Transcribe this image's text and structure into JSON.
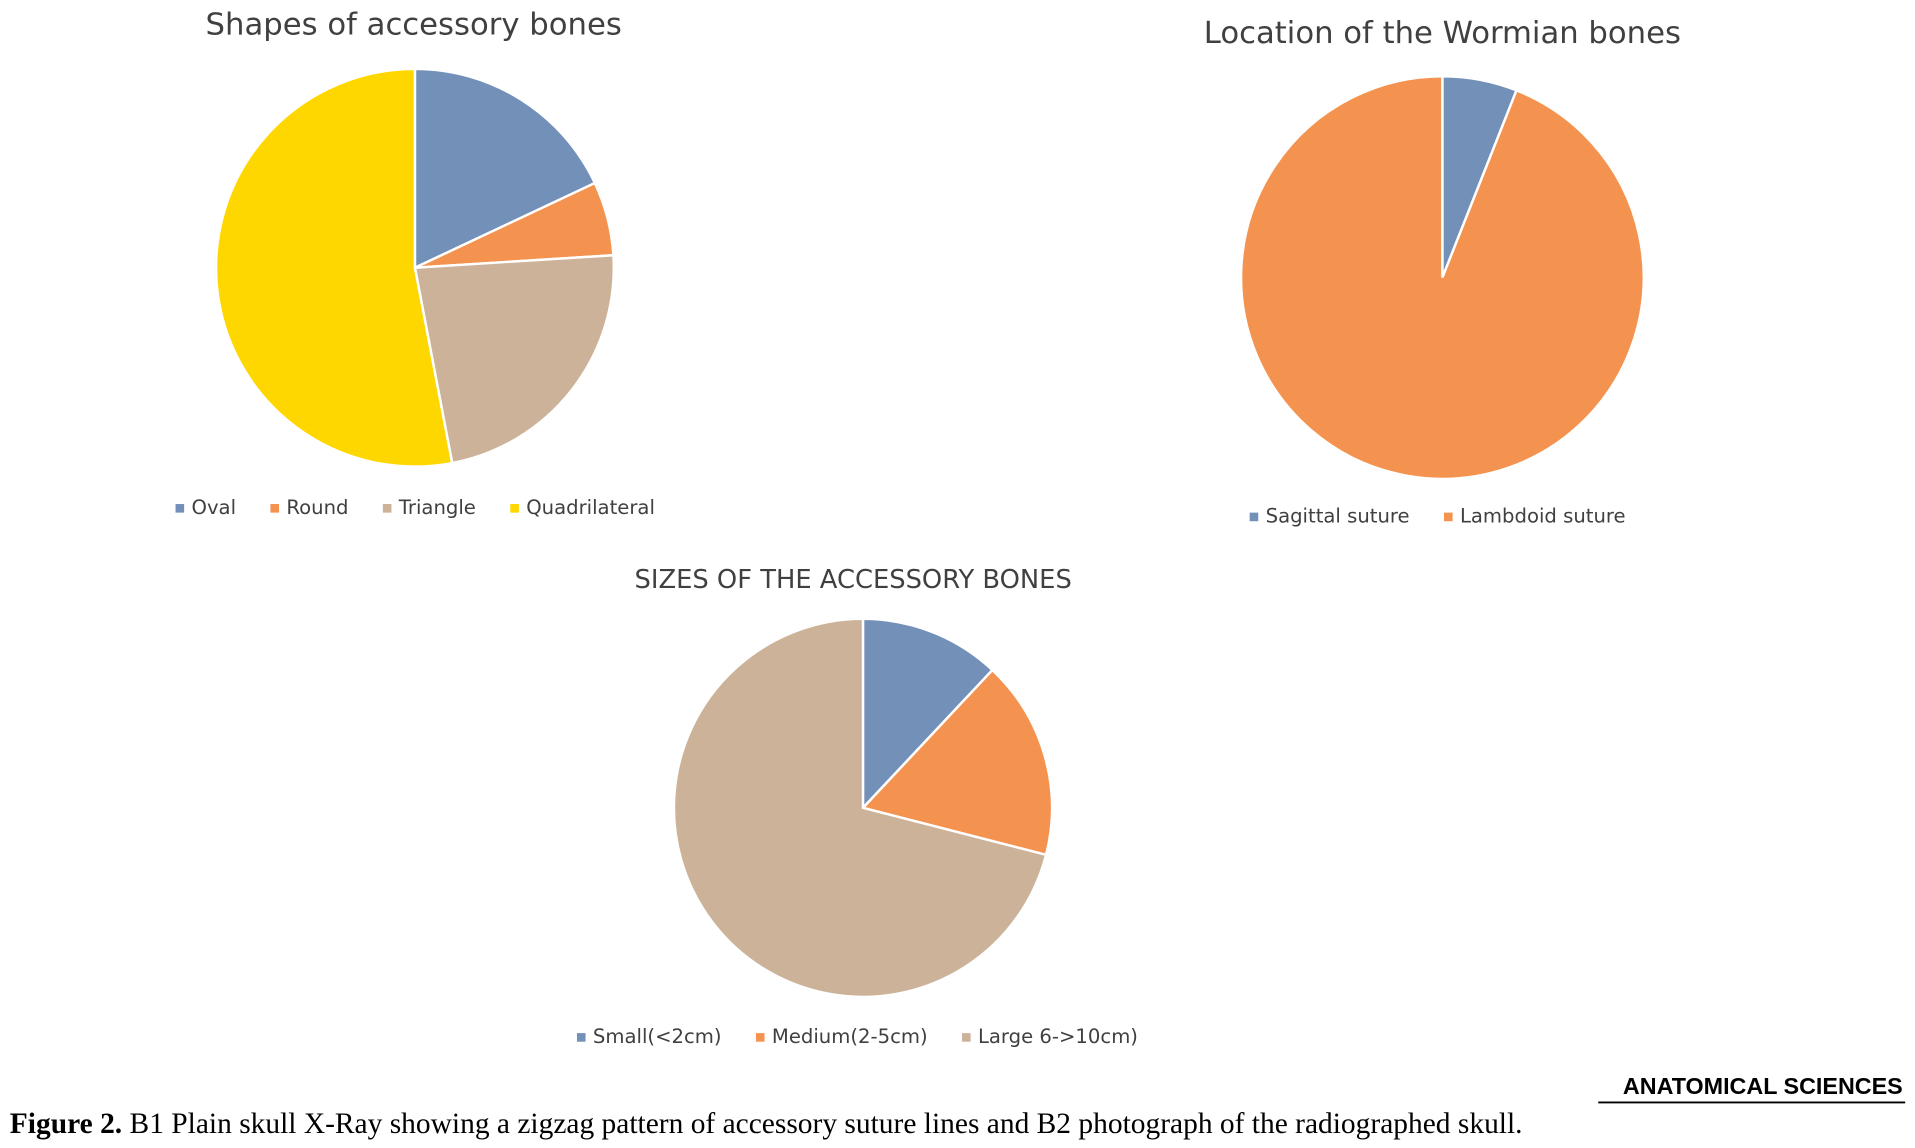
{
  "chart_data": [
    {
      "type": "pie",
      "title": "Shapes of accessory  bones",
      "categories": [
        "Oval",
        "Round",
        "Triangle",
        "Quadrilateral"
      ],
      "values": [
        18,
        6,
        23,
        53
      ],
      "colors": [
        "#7390b9",
        "#f4934f",
        "#cdb29a",
        "#ffd700"
      ],
      "legend": "bottom"
    },
    {
      "type": "pie",
      "title": "Location of the Wormian bones",
      "categories": [
        "Sagittal suture",
        "Lambdoid suture"
      ],
      "values": [
        6,
        94
      ],
      "colors": [
        "#7390b9",
        "#f4934f"
      ],
      "legend": "bottom"
    },
    {
      "type": "pie",
      "title": "SIZES OF THE ACCESSORY BONES",
      "categories": [
        "Small(<2cm)",
        "Medium(2-5cm)",
        "Large 6->10cm)"
      ],
      "values": [
        12,
        17,
        71
      ],
      "colors": [
        "#7390b9",
        "#f4934f",
        "#cdb29a"
      ],
      "legend": "bottom"
    }
  ],
  "caption": {
    "label": "Figure 2.",
    "text": "B1 Plain skull X-Ray showing a zigzag pattern of accessory suture lines and B2 photograph of the radiographed skull."
  },
  "logo": "ANATOMICAL SCIENCES"
}
